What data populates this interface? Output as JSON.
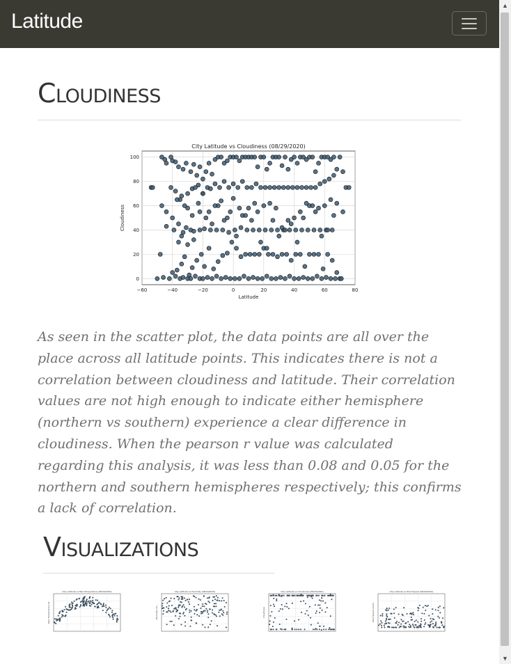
{
  "navbar": {
    "brand": "Latitude",
    "toggle_icon": "hamburger-icon"
  },
  "cloudiness": {
    "heading": "Cloudiness",
    "description": "As seen in the scatter plot, the data points are all over the place across all latitude points. This indicates there is not a correlation between cloudiness and latitude. Their correlation values are not high enough to indicate either hemisphere (northern vs southern) experience a clear difference in cloudiness. When the pearson r value was calculated regarding this analysis, it was less than 0.08 and 0.05 for the northern and southern hemispheres respectively; this confirms a lack of correlation."
  },
  "visualizations": {
    "heading": "Visualizations",
    "thumbnails": [
      {
        "kind": "max-temperature",
        "title": "City Latitude vs Max Temperature (08/29/2020)",
        "ylabel": "Max Temperature (F)"
      },
      {
        "kind": "humidity",
        "title": "City Latitude vs Humidity (08/29/2020)",
        "ylabel": "Humidity (%)"
      },
      {
        "kind": "cloudiness",
        "title": "City Latitude vs Cloudiness (08/29/2020)",
        "ylabel": "Cloudiness"
      },
      {
        "kind": "wind-speed",
        "title": "City Latitude vs Wind Speed (08/29/2020)",
        "ylabel": "Wind Speed (mph)"
      }
    ]
  },
  "chart_data": {
    "type": "scatter",
    "title": "City Latitude vs Cloudiness (08/29/2020)",
    "xlabel": "Latitude",
    "ylabel": "Cloudiness",
    "xlim": [
      -60,
      80
    ],
    "ylim": [
      -5,
      105
    ],
    "xticks": [
      -60,
      -40,
      -20,
      0,
      20,
      40,
      60,
      80
    ],
    "yticks": [
      0,
      20,
      40,
      60,
      80,
      100
    ],
    "grid": true,
    "marker_color": "#3d5a73",
    "marker_edge": "#111111",
    "x": [
      -54,
      -53,
      -47,
      -45,
      -44,
      -41,
      -40,
      -38,
      -36,
      -33,
      -31,
      -28,
      -26,
      -24,
      -22,
      -20,
      -18,
      -16,
      -14,
      -12,
      -10,
      -8,
      -6,
      -4,
      -2,
      0,
      2,
      4,
      6,
      8,
      10,
      12,
      14,
      16,
      18,
      20,
      22,
      24,
      26,
      28,
      30,
      32,
      34,
      36,
      38,
      40,
      42,
      44,
      46,
      48,
      50,
      52,
      54,
      56,
      58,
      60,
      62,
      64,
      66,
      68,
      70,
      72,
      74,
      76,
      -50,
      -46,
      -42,
      -38,
      -35,
      -33,
      -30,
      -28,
      -25,
      -22,
      -20,
      -17,
      -14,
      -11,
      -8,
      -5,
      -2,
      1,
      4,
      7,
      10,
      13,
      16,
      19,
      22,
      25,
      28,
      31,
      34,
      37,
      40,
      43,
      46,
      49,
      52,
      55,
      58,
      61,
      64,
      67,
      70,
      -48,
      -44,
      -40,
      -37,
      -34,
      -32,
      -29,
      -27,
      -24,
      -21,
      -19,
      -16,
      -13,
      -10,
      -7,
      -4,
      -1,
      2,
      5,
      8,
      11,
      14,
      17,
      20,
      23,
      26,
      29,
      32,
      35,
      38,
      41,
      44,
      47,
      50,
      53,
      56,
      59,
      62,
      65,
      68,
      71,
      -41,
      -38,
      -35,
      -32,
      -30,
      -27,
      -25,
      -23,
      -20,
      -17,
      -15,
      -12,
      -9,
      -6,
      -3,
      0,
      3,
      6,
      9,
      12,
      15,
      18,
      21,
      24,
      27,
      30,
      33,
      36,
      39,
      42,
      45,
      48,
      51,
      54,
      57,
      60,
      63,
      66,
      -39,
      -36,
      -33,
      -31,
      -28,
      -26,
      -22,
      -19,
      -15,
      -11,
      -7,
      -3,
      1,
      5,
      9,
      13,
      17,
      21,
      25,
      29,
      33,
      37,
      41,
      45,
      49,
      53,
      57,
      61,
      65,
      -36,
      -34,
      -30,
      -26,
      -22,
      -18,
      -14,
      -10,
      -6,
      -2,
      2,
      6,
      10,
      14,
      18,
      22,
      26,
      30,
      34,
      38,
      42,
      46,
      50,
      54,
      58,
      62,
      66,
      -47,
      -44,
      -40,
      -37,
      -34,
      -30,
      -27,
      -23,
      -20,
      -16,
      -12,
      -8,
      -4,
      0,
      4,
      8,
      12,
      16,
      20,
      24,
      28,
      32,
      36,
      40,
      44,
      48,
      52,
      56,
      60,
      64,
      68,
      72
    ],
    "y": [
      75,
      75,
      100,
      98,
      95,
      100,
      97,
      96,
      92,
      90,
      95,
      88,
      94,
      85,
      92,
      82,
      88,
      95,
      86,
      98,
      100,
      100,
      95,
      97,
      100,
      100,
      100,
      97,
      100,
      100,
      100,
      100,
      100,
      92,
      100,
      100,
      90,
      95,
      100,
      100,
      100,
      93,
      100,
      90,
      98,
      100,
      95,
      100,
      100,
      98,
      100,
      100,
      88,
      95,
      100,
      100,
      100,
      98,
      100,
      90,
      100,
      88,
      75,
      75,
      0,
      1,
      0,
      2,
      0,
      1,
      0,
      0,
      2,
      0,
      0,
      1,
      0,
      2,
      0,
      1,
      0,
      0,
      0,
      2,
      0,
      1,
      0,
      0,
      2,
      0,
      0,
      1,
      0,
      2,
      0,
      0,
      1,
      0,
      0,
      2,
      0,
      1,
      0,
      0,
      0,
      20,
      43,
      5,
      7,
      12,
      18,
      3,
      9,
      15,
      20,
      10,
      25,
      8,
      14,
      19,
      21,
      30,
      25,
      18,
      20,
      20,
      20,
      20,
      25,
      20,
      20,
      18,
      20,
      20,
      15,
      20,
      20,
      10,
      20,
      20,
      20,
      8,
      20,
      15,
      5,
      0,
      75,
      72,
      65,
      60,
      70,
      74,
      75,
      77,
      70,
      75,
      74,
      78,
      75,
      80,
      75,
      78,
      75,
      80,
      75,
      75,
      78,
      75,
      75,
      75,
      75,
      75,
      75,
      75,
      75,
      75,
      75,
      75,
      75,
      75,
      78,
      80,
      82,
      85,
      40,
      45,
      38,
      42,
      40,
      39,
      40,
      41,
      40,
      40,
      40,
      38,
      40,
      42,
      40,
      40,
      40,
      40,
      40,
      40,
      40,
      40,
      40,
      40,
      40,
      40,
      40,
      40,
      40,
      30,
      35,
      28,
      32,
      55,
      50,
      45,
      60,
      48,
      55,
      35,
      52,
      58,
      62,
      30,
      25,
      48,
      35,
      40,
      45,
      30,
      50,
      60,
      55,
      35,
      40,
      52,
      60,
      55,
      50,
      65,
      68,
      58,
      52,
      62,
      70,
      55,
      60,
      64,
      50,
      66,
      58,
      52,
      48,
      55,
      60,
      62,
      58,
      42,
      48,
      50,
      55,
      62,
      60,
      58,
      60,
      65,
      62,
      55
    ]
  }
}
